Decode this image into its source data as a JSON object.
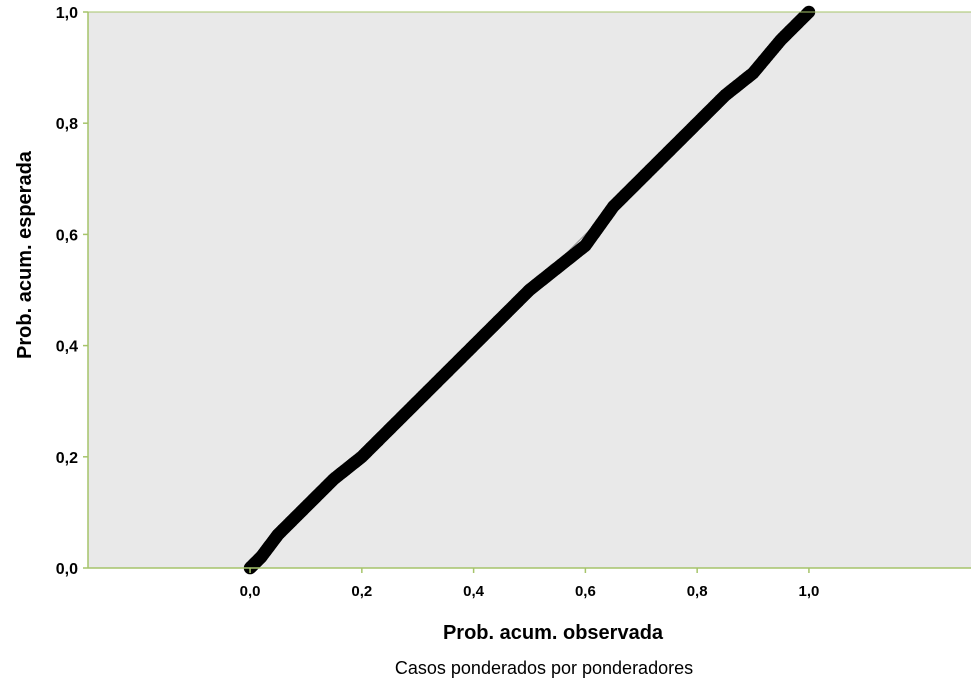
{
  "chart_data": {
    "type": "scatter",
    "title": "",
    "xlabel": "Prob. acum. observada",
    "ylabel": "Prob. acum. esperada",
    "note": "Casos ponderados por ponderadores",
    "x_ticks": [
      "0,0",
      "0,2",
      "0,4",
      "0,6",
      "0,8",
      "1,0"
    ],
    "y_ticks": [
      "0,0",
      "0,2",
      "0,4",
      "0,6",
      "0,8",
      "1,0"
    ],
    "xlim": [
      -0.29,
      1.29
    ],
    "ylim": [
      0,
      1
    ],
    "grid": false,
    "colors": {
      "plot_background": "#e9e9e9",
      "frame": "#a6c46a",
      "points": "#000000",
      "reference_line": "#9a9a9a"
    },
    "reference_line": {
      "x": [
        0,
        0.65
      ],
      "y": [
        0,
        0.65
      ]
    },
    "series": [
      {
        "x": [
          0.0,
          0.02,
          0.05,
          0.1,
          0.15,
          0.2,
          0.25,
          0.3,
          0.35,
          0.4,
          0.45,
          0.5,
          0.55,
          0.6,
          0.65,
          0.7,
          0.75,
          0.8,
          0.85,
          0.9,
          0.95,
          1.0
        ],
        "y": [
          0.0,
          0.02,
          0.06,
          0.11,
          0.16,
          0.2,
          0.25,
          0.3,
          0.35,
          0.4,
          0.45,
          0.5,
          0.54,
          0.58,
          0.65,
          0.7,
          0.75,
          0.8,
          0.85,
          0.89,
          0.95,
          1.0
        ]
      }
    ]
  }
}
